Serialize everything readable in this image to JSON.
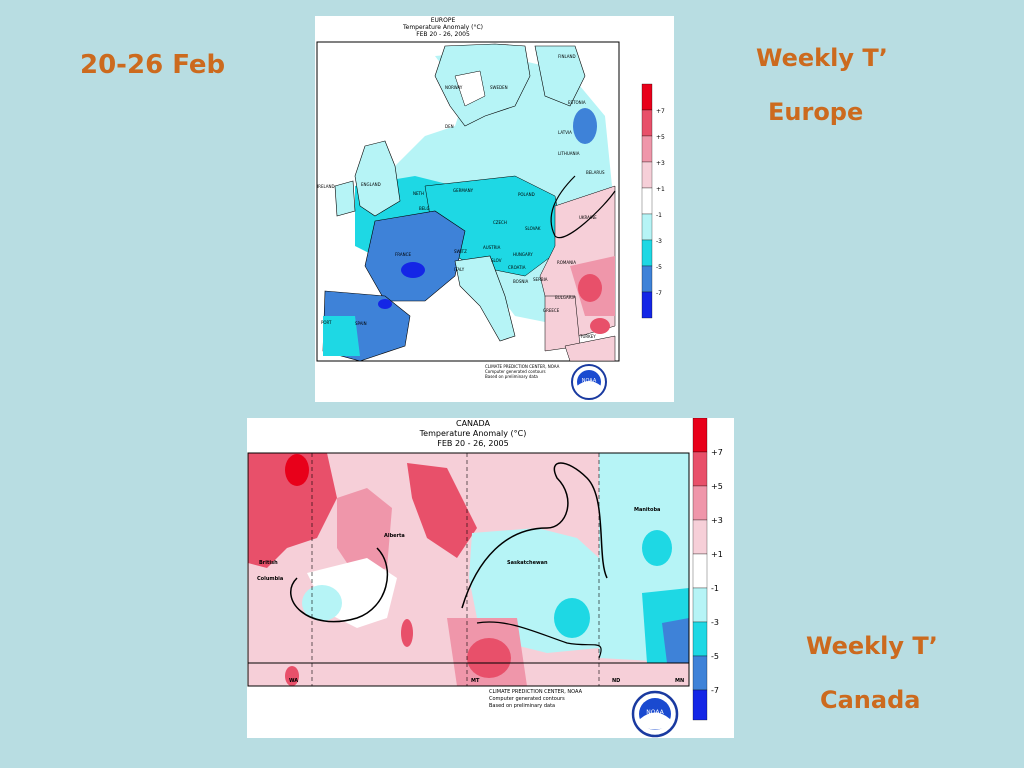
{
  "slide": {
    "date_range": "20-26 Feb",
    "europe_title_line1": "Weekly T’",
    "europe_title_line2": "Europe",
    "canada_title_line1": "Weekly T’",
    "canada_title_line2": "Canada"
  },
  "europe_map": {
    "region": "EUROPE",
    "title": "Temperature Anomaly (°C)",
    "period": "FEB 20 - 26, 2005",
    "legend": [
      "+7",
      "+5",
      "+3",
      "+1",
      "-1",
      "-3",
      "-5",
      "-7"
    ],
    "legend_colors": [
      "#e8001a",
      "#e8506a",
      "#ef96aa",
      "#f6cfd8",
      "#ffffff",
      "#b6f4f6",
      "#1ed8e4",
      "#3e82d8",
      "#1426e6"
    ],
    "credit": [
      "CLIMATE PREDICTION CENTER, NOAA",
      "Computer generated contours",
      "Based on preliminary data"
    ],
    "logo_text": "NOAA",
    "countries": [
      "FINLAND",
      "SWEDEN",
      "NORWAY",
      "ESTONIA",
      "LATVIA",
      "LITHUANIA",
      "BELARUS",
      "IRELAND",
      "ENGLAND",
      "NETH",
      "GERMANY",
      "POLAND",
      "BELG",
      "CZECH",
      "SLOVAK",
      "UKRAINE",
      "FRANCE",
      "SWITZ",
      "AUSTRIA",
      "HUNGARY",
      "ROMANIA",
      "ITALY",
      "SLOV",
      "CROATIA",
      "BOSNIA",
      "SERBIA",
      "BULGARIA",
      "GREECE",
      "SPAIN",
      "PORT",
      "TURKEY",
      "DEN"
    ]
  },
  "canada_map": {
    "region": "CANADA",
    "title": "Temperature Anomaly (°C)",
    "period": "FEB 20 - 26, 2005",
    "legend": [
      "+7",
      "+5",
      "+3",
      "+1",
      "-1",
      "-3",
      "-5",
      "-7"
    ],
    "legend_colors": [
      "#e8001a",
      "#e8506a",
      "#ef96aa",
      "#f6cfd8",
      "#ffffff",
      "#b6f4f6",
      "#1ed8e4",
      "#3e82d8",
      "#1426e6"
    ],
    "credit": [
      "CLIMATE PREDICTION CENTER, NOAA",
      "Computer generated contours",
      "Based on preliminary data"
    ],
    "logo_text": "NOAA",
    "provinces": [
      "British",
      "Columbia",
      "Alberta",
      "Saskatchewan",
      "Manitoba"
    ],
    "states": [
      "WA",
      "MT",
      "ND",
      "MN"
    ]
  }
}
